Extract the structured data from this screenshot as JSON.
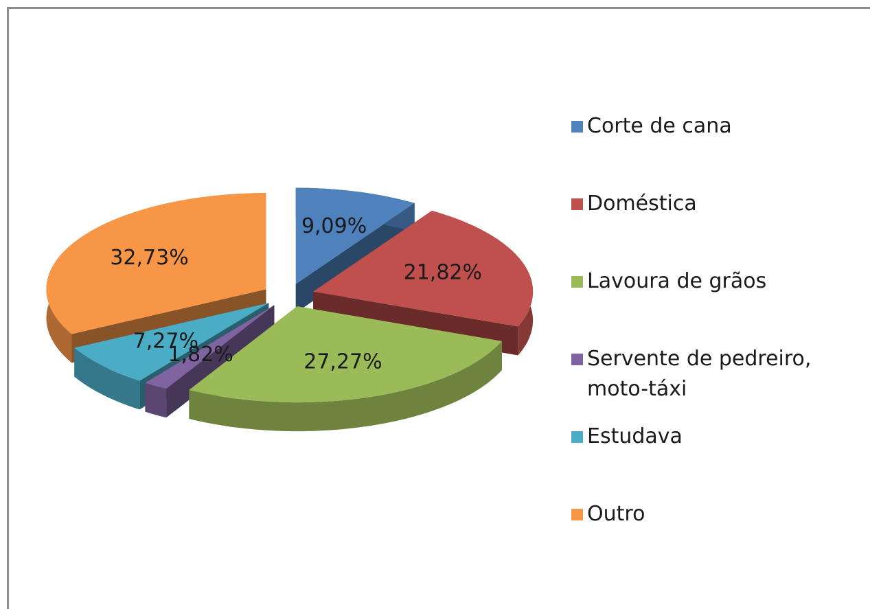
{
  "chart_data": {
    "type": "pie3d",
    "categories": [
      "Corte de cana",
      "Doméstica",
      "Lavoura de grãos",
      "Servente de pedreiro, moto-táxi",
      "Estudava",
      "Outro"
    ],
    "values": [
      9.09,
      21.82,
      27.27,
      1.82,
      7.27,
      32.73
    ],
    "value_labels": [
      "9,09%",
      "21,82%",
      "27,27%",
      "1,82%",
      "7,27%",
      "32,73%"
    ],
    "colors": [
      "#4f81bd",
      "#c0504d",
      "#9bbb59",
      "#8064a2",
      "#4bacc6",
      "#f79646"
    ],
    "exploded": true,
    "legend": "right"
  }
}
